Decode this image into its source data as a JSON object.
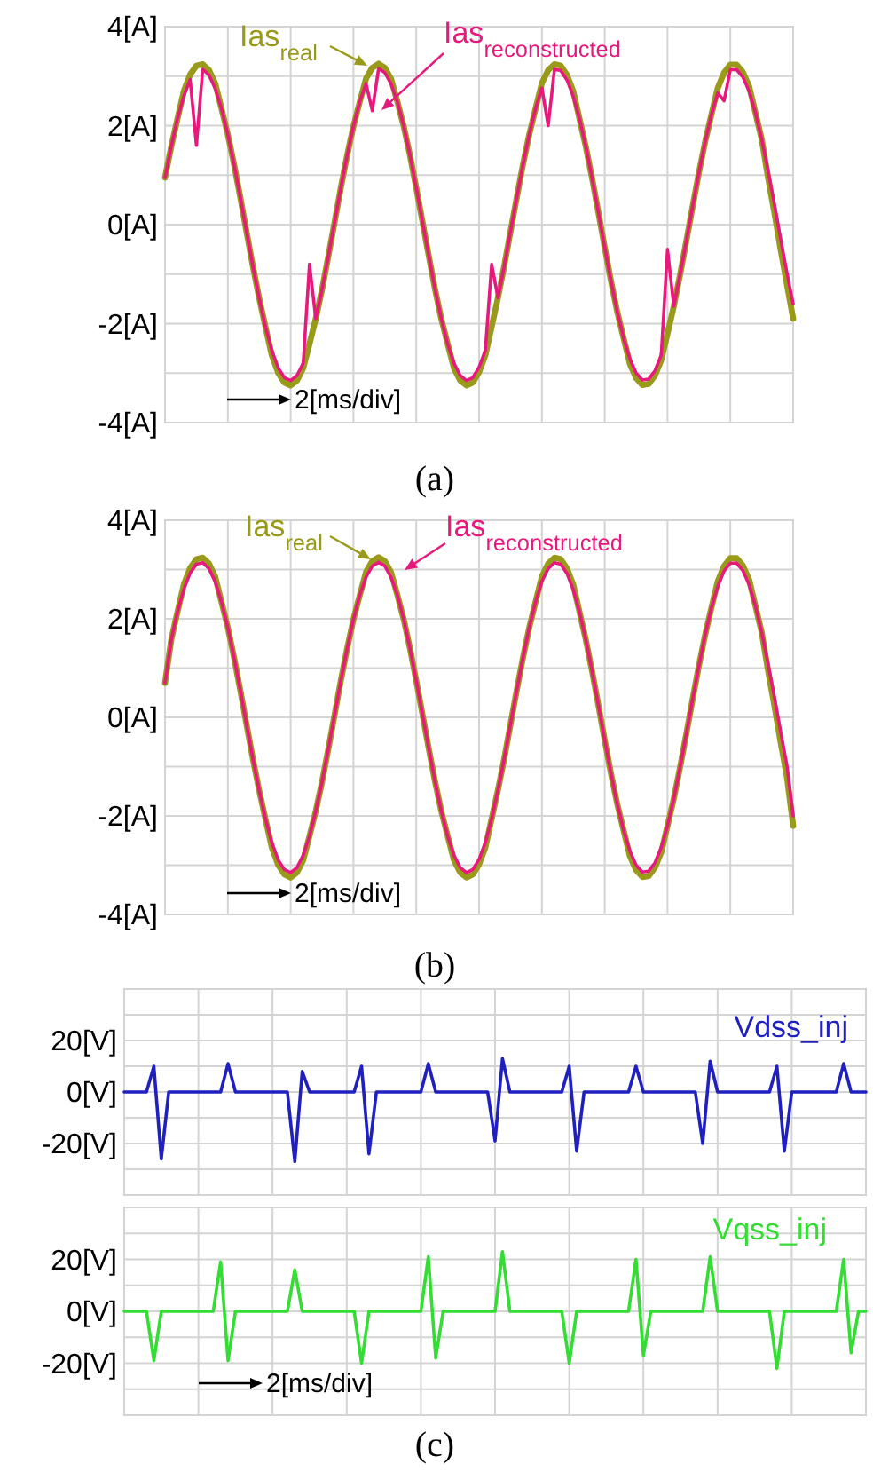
{
  "chart_data": [
    {
      "type": "line",
      "categories": [
        null,
        null,
        null,
        null,
        null,
        null,
        null,
        null,
        null,
        null,
        null,
        null,
        null,
        null,
        null,
        null,
        null,
        null,
        null,
        null,
        null,
        null,
        null,
        null,
        null,
        null,
        null,
        null,
        null,
        null,
        null,
        null,
        null,
        null,
        null,
        null,
        null,
        null,
        null,
        null,
        null,
        null,
        null,
        null,
        null,
        null,
        null,
        null,
        null,
        null,
        null,
        null,
        null,
        null,
        null,
        null,
        null,
        null,
        null,
        null,
        null,
        null,
        null,
        null,
        null,
        null,
        null,
        null,
        null,
        null,
        null,
        null,
        null,
        null,
        null,
        null,
        null,
        null,
        null,
        null,
        null,
        null,
        null,
        null,
        null,
        null,
        null,
        null,
        null,
        null,
        null,
        null,
        null,
        null,
        null,
        null,
        null,
        null,
        null,
        null,
        null
      ],
      "ylim": [
        -4,
        4
      ],
      "yticks": [
        {
          "value": -4,
          "label": "-4[A]"
        },
        {
          "value": -3,
          "label": null
        },
        {
          "value": -2,
          "label": "-2[A]"
        },
        {
          "value": -1,
          "label": null
        },
        {
          "value": 0,
          "label": "0[A]"
        },
        {
          "value": 1,
          "label": null
        },
        {
          "value": 2,
          "label": "2[A]"
        },
        {
          "value": 3,
          "label": null
        },
        {
          "value": 4,
          "label": "4[A]"
        }
      ],
      "tick_labels": "y",
      "grid": true,
      "annotations": [
        "2[ms/div]",
        "(a)"
      ],
      "series": [
        {
          "name": "Ias$_{real}$",
          "color": "#9a9a1a",
          "values": [
            0.95,
            1.58,
            2.15,
            2.7,
            3.03,
            3.21,
            3.24,
            3.12,
            2.85,
            2.34,
            1.82,
            1.21,
            0.54,
            -0.16,
            -0.85,
            -1.49,
            -2.07,
            -2.64,
            -2.99,
            -3.19,
            -3.25,
            -3.15,
            -2.9,
            -2.41,
            -1.9,
            -1.31,
            -0.64,
            0.05,
            0.75,
            1.4,
            1.99,
            2.48,
            2.95,
            3.17,
            3.25,
            3.17,
            2.94,
            2.48,
            1.99,
            1.4,
            0.74,
            0.05,
            -0.64,
            -1.31,
            -1.91,
            -2.41,
            -2.9,
            -3.15,
            -3.25,
            -3.19,
            -2.98,
            -2.64,
            -2.06,
            -1.48,
            -0.84,
            -0.14,
            0.55,
            1.22,
            1.83,
            2.35,
            2.86,
            3.12,
            3.24,
            3.21,
            3.02,
            2.69,
            2.13,
            1.57,
            0.93,
            0.24,
            -0.46,
            -1.14,
            -1.76,
            -2.29,
            -2.81,
            -3.1,
            -3.24,
            -3.22,
            -3.05,
            -2.74,
            -2.2,
            -1.65,
            -1.01,
            -0.33,
            0.37,
            1.05,
            1.68,
            2.23,
            2.76,
            3.07,
            3.23,
            3.23,
            3.08,
            2.79,
            2.26,
            1.72,
            0.95,
            0.25,
            -0.5,
            -1.2,
            -1.9
          ]
        },
        {
          "name": "Ias$_{reconstructed}$",
          "color": "#e8197d",
          "values": [
            0.95,
            1.58,
            2.15,
            2.6,
            2.93,
            1.6,
            3.14,
            3.02,
            2.75,
            2.34,
            1.82,
            1.21,
            0.54,
            -0.16,
            -0.85,
            -1.49,
            -2.07,
            -2.54,
            -2.89,
            -3.09,
            -3.15,
            -3.05,
            -2.8,
            -0.8,
            -1.9,
            -1.31,
            -0.64,
            0.05,
            0.75,
            1.4,
            1.99,
            2.48,
            2.85,
            2.3,
            3.15,
            3.07,
            2.84,
            2.48,
            1.99,
            1.4,
            0.74,
            0.05,
            -0.64,
            -1.31,
            -1.91,
            -2.41,
            -2.8,
            -3.05,
            -3.15,
            -3.09,
            -2.88,
            -2.54,
            -0.8,
            -1.48,
            -0.84,
            -0.14,
            0.55,
            1.22,
            1.83,
            2.35,
            2.76,
            2.0,
            3.14,
            3.11,
            2.92,
            2.59,
            2.13,
            1.57,
            0.93,
            0.24,
            -0.46,
            -1.14,
            -1.76,
            -2.29,
            -2.71,
            -3.0,
            -3.14,
            -3.12,
            -2.95,
            -2.64,
            -0.5,
            -1.65,
            -1.01,
            -0.33,
            0.37,
            1.05,
            1.68,
            2.23,
            2.66,
            2.5,
            3.13,
            3.13,
            2.98,
            2.69,
            2.26,
            1.72,
            1.09,
            0.42,
            -0.29,
            -0.97,
            -1.6
          ]
        }
      ]
    },
    {
      "type": "line",
      "categories": [
        null,
        null,
        null,
        null,
        null,
        null,
        null,
        null,
        null,
        null,
        null,
        null,
        null,
        null,
        null,
        null,
        null,
        null,
        null,
        null,
        null,
        null,
        null,
        null,
        null,
        null,
        null,
        null,
        null,
        null,
        null,
        null,
        null,
        null,
        null,
        null,
        null,
        null,
        null,
        null,
        null,
        null,
        null,
        null,
        null,
        null,
        null,
        null,
        null,
        null,
        null,
        null,
        null,
        null,
        null,
        null,
        null,
        null,
        null,
        null,
        null,
        null,
        null,
        null,
        null,
        null,
        null,
        null,
        null,
        null,
        null,
        null,
        null,
        null,
        null,
        null,
        null,
        null,
        null,
        null,
        null,
        null,
        null,
        null,
        null,
        null,
        null,
        null,
        null,
        null,
        null,
        null,
        null,
        null,
        null,
        null,
        null,
        null,
        null,
        null,
        null
      ],
      "ylim": [
        -4,
        4
      ],
      "yticks": [
        {
          "value": -4,
          "label": "-4[A]"
        },
        {
          "value": -3,
          "label": null
        },
        {
          "value": -2,
          "label": "-2[A]"
        },
        {
          "value": -1,
          "label": null
        },
        {
          "value": 0,
          "label": "0[A]"
        },
        {
          "value": 1,
          "label": null
        },
        {
          "value": 2,
          "label": "2[A]"
        },
        {
          "value": 3,
          "label": null
        },
        {
          "value": 4,
          "label": "4[A]"
        }
      ],
      "tick_labels": "y",
      "grid": true,
      "annotations": [
        "2[ms/div]",
        "(b)"
      ],
      "series": [
        {
          "name": "Ias$_{real}$",
          "color": "#9a9a1a",
          "values": [
            0.7,
            1.58,
            2.15,
            2.7,
            3.03,
            3.21,
            3.24,
            3.12,
            2.85,
            2.34,
            1.82,
            1.21,
            0.54,
            -0.16,
            -0.85,
            -1.49,
            -2.07,
            -2.64,
            -2.99,
            -3.19,
            -3.25,
            -3.15,
            -2.9,
            -2.41,
            -1.9,
            -1.31,
            -0.64,
            0.05,
            0.75,
            1.4,
            1.99,
            2.48,
            2.95,
            3.17,
            3.25,
            3.17,
            2.94,
            2.48,
            1.99,
            1.4,
            0.74,
            0.05,
            -0.64,
            -1.31,
            -1.91,
            -2.41,
            -2.9,
            -3.15,
            -3.25,
            -3.19,
            -2.98,
            -2.64,
            -2.06,
            -1.48,
            -0.84,
            -0.14,
            0.55,
            1.22,
            1.83,
            2.35,
            2.86,
            3.12,
            3.24,
            3.21,
            3.02,
            2.69,
            2.13,
            1.57,
            0.93,
            0.24,
            -0.46,
            -1.14,
            -1.76,
            -2.29,
            -2.81,
            -3.1,
            -3.24,
            -3.22,
            -3.05,
            -2.74,
            -2.2,
            -1.65,
            -1.01,
            -0.33,
            0.37,
            1.05,
            1.68,
            2.23,
            2.76,
            3.07,
            3.23,
            3.23,
            3.08,
            2.79,
            2.26,
            1.72,
            0.95,
            0.25,
            -0.5,
            -1.2,
            -2.2
          ]
        },
        {
          "name": "Ias$_{reconstructed}$",
          "color": "#e8197d",
          "values": [
            0.7,
            1.58,
            2.15,
            2.6,
            2.93,
            3.11,
            3.14,
            3.02,
            2.75,
            2.34,
            1.82,
            1.21,
            0.54,
            -0.16,
            -0.85,
            -1.49,
            -2.07,
            -2.54,
            -2.89,
            -3.09,
            -3.15,
            -3.05,
            -2.8,
            -2.41,
            -1.9,
            -1.31,
            -0.64,
            0.05,
            0.75,
            1.4,
            1.99,
            2.48,
            2.85,
            3.07,
            3.15,
            3.07,
            2.84,
            2.48,
            1.99,
            1.4,
            0.74,
            0.05,
            -0.64,
            -1.31,
            -1.91,
            -2.41,
            -2.8,
            -3.05,
            -3.15,
            -3.09,
            -2.88,
            -2.54,
            -2.06,
            -1.48,
            -0.84,
            -0.14,
            0.55,
            1.22,
            1.83,
            2.35,
            2.76,
            3.02,
            3.14,
            3.11,
            2.92,
            2.59,
            2.13,
            1.57,
            0.93,
            0.24,
            -0.46,
            -1.14,
            -1.76,
            -2.29,
            -2.71,
            -3.0,
            -3.14,
            -3.12,
            -2.95,
            -2.64,
            -2.2,
            -1.65,
            -1.01,
            -0.33,
            0.37,
            1.05,
            1.68,
            2.23,
            2.66,
            2.97,
            3.13,
            3.13,
            2.98,
            2.69,
            2.26,
            1.72,
            1.09,
            0.42,
            -0.29,
            -0.97,
            -2.0
          ]
        }
      ]
    },
    {
      "type": "line",
      "categories": [
        null,
        null,
        null,
        null,
        null,
        null,
        null,
        null,
        null,
        null,
        null,
        null,
        null,
        null,
        null,
        null,
        null,
        null,
        null,
        null,
        null,
        null,
        null,
        null,
        null,
        null,
        null,
        null,
        null,
        null,
        null,
        null,
        null,
        null,
        null,
        null,
        null,
        null,
        null,
        null,
        null,
        null,
        null,
        null,
        null,
        null,
        null,
        null,
        null,
        null,
        null,
        null,
        null,
        null,
        null,
        null,
        null,
        null,
        null,
        null,
        null,
        null,
        null,
        null,
        null,
        null,
        null,
        null,
        null,
        null,
        null,
        null,
        null,
        null,
        null,
        null,
        null,
        null,
        null,
        null,
        null,
        null,
        null,
        null,
        null,
        null,
        null,
        null,
        null,
        null,
        null,
        null,
        null,
        null,
        null,
        null,
        null,
        null,
        null,
        null,
        null
      ],
      "ylim": [
        -40,
        40
      ],
      "yticks": [
        {
          "value": -40,
          "label": null
        },
        {
          "value": -30,
          "label": null
        },
        {
          "value": -20,
          "label": "-20[V]"
        },
        {
          "value": -10,
          "label": null
        },
        {
          "value": 0,
          "label": "0[V]"
        },
        {
          "value": 10,
          "label": null
        },
        {
          "value": 20,
          "label": "20[V]"
        },
        {
          "value": 30,
          "label": null
        },
        {
          "value": 40,
          "label": null
        }
      ],
      "tick_labels": "y",
      "grid": true,
      "series": [
        {
          "name": "Vdss_inj",
          "color": "#2020c0",
          "values": [
            0,
            0,
            0,
            0,
            10,
            -26,
            0,
            0,
            0,
            0,
            0,
            0,
            0,
            0,
            11,
            0,
            0,
            0,
            0,
            0,
            0,
            0,
            0,
            -27,
            8,
            0,
            0,
            0,
            0,
            0,
            0,
            0,
            10,
            -24,
            0,
            0,
            0,
            0,
            0,
            0,
            0,
            11,
            0,
            0,
            0,
            0,
            0,
            0,
            0,
            0,
            -19,
            13,
            0,
            0,
            0,
            0,
            0,
            0,
            0,
            0,
            10,
            -23,
            0,
            0,
            0,
            0,
            0,
            0,
            0,
            10,
            0,
            0,
            0,
            0,
            0,
            0,
            0,
            0,
            -20,
            12,
            0,
            0,
            0,
            0,
            0,
            0,
            0,
            0,
            10,
            -23,
            0,
            0,
            0,
            0,
            0,
            0,
            0,
            11,
            0,
            0,
            0
          ]
        }
      ]
    },
    {
      "type": "line",
      "categories": [
        null,
        null,
        null,
        null,
        null,
        null,
        null,
        null,
        null,
        null,
        null,
        null,
        null,
        null,
        null,
        null,
        null,
        null,
        null,
        null,
        null,
        null,
        null,
        null,
        null,
        null,
        null,
        null,
        null,
        null,
        null,
        null,
        null,
        null,
        null,
        null,
        null,
        null,
        null,
        null,
        null,
        null,
        null,
        null,
        null,
        null,
        null,
        null,
        null,
        null,
        null,
        null,
        null,
        null,
        null,
        null,
        null,
        null,
        null,
        null,
        null,
        null,
        null,
        null,
        null,
        null,
        null,
        null,
        null,
        null,
        null,
        null,
        null,
        null,
        null,
        null,
        null,
        null,
        null,
        null,
        null,
        null,
        null,
        null,
        null,
        null,
        null,
        null,
        null,
        null,
        null,
        null,
        null,
        null,
        null,
        null,
        null,
        null,
        null,
        null,
        null
      ],
      "ylim": [
        -40,
        40
      ],
      "yticks": [
        {
          "value": -40,
          "label": null
        },
        {
          "value": -30,
          "label": null
        },
        {
          "value": -20,
          "label": "-20[V]"
        },
        {
          "value": -10,
          "label": null
        },
        {
          "value": 0,
          "label": "0[V]"
        },
        {
          "value": 10,
          "label": null
        },
        {
          "value": 20,
          "label": "20[V]"
        },
        {
          "value": 30,
          "label": null
        },
        {
          "value": 40,
          "label": null
        }
      ],
      "tick_labels": "y",
      "grid": true,
      "annotations": [
        "2[ms/div]",
        "(c)"
      ],
      "series": [
        {
          "name": "Vqss_inj",
          "color": "#33dd33",
          "values": [
            0,
            0,
            0,
            0,
            -19,
            0,
            0,
            0,
            0,
            0,
            0,
            0,
            0,
            19,
            -19,
            0,
            0,
            0,
            0,
            0,
            0,
            0,
            0,
            16,
            0,
            0,
            0,
            0,
            0,
            0,
            0,
            0,
            -20,
            0,
            0,
            0,
            0,
            0,
            0,
            0,
            0,
            21,
            -18,
            0,
            0,
            0,
            0,
            0,
            0,
            0,
            0,
            23,
            0,
            0,
            0,
            0,
            0,
            0,
            0,
            0,
            -20,
            0,
            0,
            0,
            0,
            0,
            0,
            0,
            0,
            20,
            -17,
            0,
            0,
            0,
            0,
            0,
            0,
            0,
            0,
            21,
            0,
            0,
            0,
            0,
            0,
            0,
            0,
            0,
            -22,
            0,
            0,
            0,
            0,
            0,
            0,
            0,
            0,
            20,
            -16,
            0,
            0
          ]
        }
      ]
    }
  ]
}
